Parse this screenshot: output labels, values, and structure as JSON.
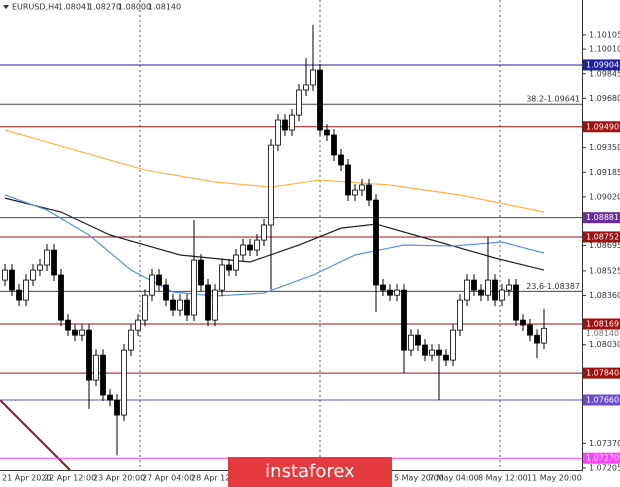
{
  "chart_data": {
    "type": "candlestick",
    "symbol": "EURUSD,H4",
    "quote": [
      {
        "value": 1.08041,
        "label": "1.08041"
      },
      {
        "value": 1.0827,
        "label": "1.08270"
      },
      {
        "value": 1.08,
        "label": "1.08000"
      },
      {
        "value": 1.0814,
        "label": "1.08140"
      }
    ],
    "watermark": "instaforex",
    "ylim": [
      1.07191,
      1.10339
    ],
    "yticks": [
      {
        "value": 1.10105,
        "label": "1.10105"
      },
      {
        "value": 1.1001,
        "label": "1.10010"
      },
      {
        "value": 1.09845,
        "label": "1.09845"
      },
      {
        "value": 1.0968,
        "label": "1.09680"
      },
      {
        "value": 1.0935,
        "label": "1.09350"
      },
      {
        "value": 1.09185,
        "label": "1.09185"
      },
      {
        "value": 1.0902,
        "label": "1.09020"
      },
      {
        "value": 1.08695,
        "label": "1.08695"
      },
      {
        "value": 1.08525,
        "label": "1.08525"
      },
      {
        "value": 1.0836,
        "label": "1.08360"
      },
      {
        "value": 1.0803,
        "label": "1.08030"
      },
      {
        "value": 1.0737,
        "label": "1.07370"
      },
      {
        "value": 1.07205,
        "label": "1.07205"
      }
    ],
    "categories": [
      "21 Apr 2020",
      null,
      null,
      null,
      null,
      null,
      "22 Apr 12:00",
      null,
      null,
      null,
      null,
      null,
      null,
      "23 Apr 20:00",
      null,
      null,
      null,
      null,
      null,
      null,
      "27 Apr 04:00",
      null,
      null,
      null,
      null,
      null,
      null,
      "28 Apr 12:00",
      null,
      null,
      null,
      null,
      null,
      null,
      null,
      null,
      null,
      null,
      null,
      null,
      null,
      null,
      null,
      null,
      null,
      null,
      null,
      null,
      null,
      null,
      null,
      null,
      null,
      null,
      null,
      null,
      "5 May 20:00",
      null,
      null,
      null,
      null,
      "7 May 04:00",
      null,
      null,
      null,
      null,
      null,
      null,
      "8 May 12:00",
      null,
      null,
      null,
      null,
      null,
      null,
      "11 May 20:00",
      null,
      null
    ],
    "open": [
      1.08463,
      1.0853,
      1.08396,
      1.08329,
      1.08463,
      1.0853,
      1.08564,
      1.08664,
      1.08497,
      1.08195,
      1.08128,
      1.08094,
      1.08128,
      1.07793,
      1.0796,
      1.07693,
      1.07659,
      1.07559,
      1.07994,
      1.08128,
      1.08195,
      1.08362,
      1.08497,
      1.0843,
      1.08329,
      1.08262,
      1.08329,
      1.08229,
      1.08597,
      1.0843,
      1.08195,
      1.08396,
      1.08564,
      1.0853,
      1.08631,
      1.08698,
      1.08664,
      1.08731,
      1.08832,
      1.09367,
      1.09535,
      1.09468,
      1.09568,
      1.09736,
      1.0977,
      1.0987,
      1.09468,
      1.09435,
      1.09301,
      1.09234,
      1.09033,
      1.09066,
      1.091,
      1.08999,
      1.0843,
      1.08396,
      1.08362,
      1.08396,
      1.07994,
      1.08094,
      1.08028,
      1.0796,
      1.07994,
      1.0796,
      1.07927,
      1.08128,
      1.08329,
      1.08463,
      1.08396,
      1.08362,
      1.08463,
      1.08329,
      1.08396,
      1.0843,
      1.08195,
      1.08162,
      1.08094,
      1.08041
    ],
    "high": [
      1.0857,
      1.0857,
      1.08436,
      1.08503,
      1.0857,
      1.08604,
      1.08704,
      1.08704,
      1.08537,
      1.08235,
      1.08168,
      1.08168,
      1.08168,
      1.08,
      1.08,
      1.07733,
      1.07699,
      1.08034,
      1.08168,
      1.08235,
      1.08402,
      1.08537,
      1.08537,
      1.0847,
      1.08369,
      1.08369,
      1.08369,
      1.08865,
      1.08637,
      1.0847,
      1.08436,
      1.08604,
      1.08604,
      1.08671,
      1.08738,
      1.08738,
      1.08771,
      1.08872,
      1.09407,
      1.09575,
      1.09575,
      1.09608,
      1.09776,
      1.0995,
      1.10172,
      1.0991,
      1.09508,
      1.09475,
      1.09341,
      1.09274,
      1.09106,
      1.0914,
      1.0914,
      1.09039,
      1.0847,
      1.08436,
      1.08436,
      1.08436,
      1.08134,
      1.08134,
      1.08068,
      1.08034,
      1.08034,
      1.08,
      1.08168,
      1.08369,
      1.08503,
      1.08503,
      1.08436,
      1.08752,
      1.08503,
      1.08436,
      1.0847,
      1.0847,
      1.08235,
      1.08202,
      1.08134,
      1.0827
    ],
    "low": [
      1.08423,
      1.08356,
      1.08289,
      1.08289,
      1.08423,
      1.0849,
      1.08524,
      1.08457,
      1.08155,
      1.08088,
      1.08054,
      1.08054,
      1.076,
      1.07753,
      1.07653,
      1.07619,
      1.07291,
      1.07519,
      1.07954,
      1.08088,
      1.08155,
      1.08322,
      1.0839,
      1.08289,
      1.08222,
      1.08222,
      1.08189,
      1.08189,
      1.0839,
      1.08155,
      1.08155,
      1.08356,
      1.0849,
      1.0849,
      1.08591,
      1.08624,
      1.08624,
      1.08691,
      1.084,
      1.09327,
      1.09428,
      1.09428,
      1.09528,
      1.09696,
      1.0973,
      1.09428,
      1.09395,
      1.09261,
      1.09194,
      1.08993,
      1.08993,
      1.09026,
      1.08959,
      1.0825,
      1.08356,
      1.08322,
      1.08322,
      1.0784,
      1.07954,
      1.07988,
      1.0792,
      1.0792,
      1.07659,
      1.07887,
      1.07887,
      1.08088,
      1.08289,
      1.08356,
      1.08322,
      1.08322,
      1.08289,
      1.08289,
      1.08356,
      1.08155,
      1.08122,
      1.08054,
      1.0794,
      1.08
    ],
    "close": [
      1.0853,
      1.08396,
      1.08329,
      1.08463,
      1.0853,
      1.08564,
      1.08664,
      1.08497,
      1.08195,
      1.08128,
      1.08094,
      1.08128,
      1.07793,
      1.0796,
      1.07693,
      1.07659,
      1.07559,
      1.07994,
      1.08128,
      1.08195,
      1.08362,
      1.08497,
      1.0843,
      1.08329,
      1.08262,
      1.08329,
      1.08229,
      1.08597,
      1.0843,
      1.08195,
      1.08396,
      1.08564,
      1.0853,
      1.08631,
      1.08698,
      1.08664,
      1.08731,
      1.08832,
      1.09367,
      1.09535,
      1.09468,
      1.09568,
      1.09736,
      1.0977,
      1.0987,
      1.09468,
      1.09435,
      1.09301,
      1.09234,
      1.09033,
      1.09066,
      1.091,
      1.08999,
      1.0843,
      1.08396,
      1.08362,
      1.08396,
      1.07994,
      1.08094,
      1.08028,
      1.0796,
      1.07994,
      1.0796,
      1.07927,
      1.08128,
      1.08329,
      1.08463,
      1.08396,
      1.08362,
      1.08463,
      1.08329,
      1.08396,
      1.0843,
      1.08195,
      1.08162,
      1.08094,
      1.08041,
      1.0814
    ],
    "moving_averages": [
      {
        "color": "#ffb347",
        "x": [
          0,
          10,
          20,
          30,
          38,
          45,
          55,
          65,
          77
        ],
        "values": [
          1.09468,
          1.09334,
          1.092,
          1.0912,
          1.09086,
          1.09133,
          1.091,
          1.09033,
          1.08919
        ]
      },
      {
        "color": "#222222",
        "x": [
          0,
          8,
          15,
          25,
          35,
          42,
          48,
          53,
          60,
          70,
          77
        ],
        "values": [
          1.09012,
          1.08919,
          1.08765,
          1.08631,
          1.08584,
          1.08698,
          1.08811,
          1.08838,
          1.08745,
          1.08611,
          1.0853
        ]
      },
      {
        "color": "#5b8def",
        "x": [
          0,
          6,
          12,
          18,
          24,
          30,
          37,
          44,
          50,
          57,
          64,
          71,
          77
        ],
        "values": [
          1.09033,
          1.08932,
          1.08765,
          1.0853,
          1.08383,
          1.08356,
          1.08376,
          1.08497,
          1.08631,
          1.08698,
          1.08691,
          1.08718,
          1.08644
        ]
      }
    ],
    "levels": [
      {
        "value": 1.09904,
        "label": "1.09904",
        "color": "#1f1fa0"
      },
      {
        "value": 1.0949,
        "label": "1.09490",
        "color": "#a01010"
      },
      {
        "value": 1.08881,
        "label": "1.08881",
        "color": "#6a2ca0"
      },
      {
        "value": 1.08752,
        "label": "1.08752",
        "color": "#a01010"
      },
      {
        "value": 1.08169,
        "label": "1.08169",
        "color": "#a01010"
      },
      {
        "value": 1.0784,
        "label": "1.07840",
        "color": "#a01010"
      },
      {
        "value": 1.0766,
        "label": "1.07660",
        "color": "#6a4ad0"
      },
      {
        "value": 1.0727,
        "label": "1.07270",
        "color": "#ff40ff"
      }
    ],
    "fib_levels": [
      {
        "value": 1.09641,
        "label": "38.2-1.09641",
        "color": "#444444"
      },
      {
        "value": 1.08387,
        "label": "23.6-1.08387",
        "color": "#444444"
      }
    ],
    "price_marker": {
      "value": 1.0814,
      "label": "1.08140"
    }
  }
}
